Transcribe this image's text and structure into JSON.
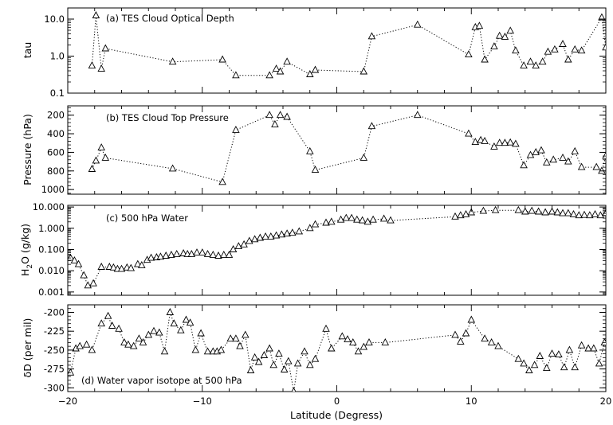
{
  "chart_data": [
    {
      "type": "scatter",
      "title": "(a) TES Cloud Optical Depth",
      "ylabel": "tau",
      "yscale": "log",
      "ylim": [
        0.1,
        20
      ],
      "xlim": [
        -20,
        20
      ],
      "line_style": "dotted",
      "marker": "open-triangle",
      "yticks": [
        {
          "v": 0.1,
          "label": "0.1"
        },
        {
          "v": 1,
          "label": "1.0"
        },
        {
          "v": 10,
          "label": "10.0"
        }
      ],
      "x": [
        -18.2,
        -17.9,
        -17.5,
        -17.2,
        -12.2,
        -8.5,
        -7.5,
        -5.0,
        -4.5,
        -4.2,
        -3.7,
        -2.0,
        -1.6,
        2.0,
        2.6,
        6.0,
        9.8,
        10.3,
        10.6,
        11.0,
        11.7,
        12.1,
        12.5,
        12.9,
        13.3,
        13.9,
        14.4,
        14.8,
        15.3,
        15.7,
        16.2,
        16.8,
        17.2,
        17.7,
        18.2,
        19.7,
        20.0
      ],
      "y": [
        0.55,
        12.5,
        0.45,
        1.6,
        0.7,
        0.8,
        0.3,
        0.3,
        0.45,
        0.38,
        0.7,
        0.32,
        0.42,
        0.38,
        3.4,
        7.0,
        1.1,
        6.0,
        6.5,
        0.8,
        1.8,
        3.5,
        3.3,
        4.8,
        1.4,
        0.55,
        0.7,
        0.55,
        0.7,
        1.3,
        1.5,
        2.1,
        0.8,
        1.5,
        1.4,
        11.0,
        1.7
      ]
    },
    {
      "type": "scatter",
      "title": "(b) TES Cloud Top Pressure",
      "ylabel": "Pressure (hPa)",
      "yscale": "linear",
      "yinvert": true,
      "ylim": [
        1050,
        100
      ],
      "xlim": [
        -20,
        20
      ],
      "line_style": "dotted",
      "marker": "open-triangle",
      "yticks": [
        {
          "v": 200,
          "label": "200"
        },
        {
          "v": 400,
          "label": "400"
        },
        {
          "v": 600,
          "label": "600"
        },
        {
          "v": 800,
          "label": "800"
        },
        {
          "v": 1000,
          "label": "1000"
        }
      ],
      "x": [
        -18.2,
        -17.9,
        -17.5,
        -17.2,
        -12.2,
        -8.5,
        -7.5,
        -5.0,
        -4.6,
        -4.2,
        -3.7,
        -2.0,
        -1.6,
        2.0,
        2.6,
        6.0,
        9.8,
        10.3,
        10.7,
        11.0,
        11.7,
        12.1,
        12.5,
        12.9,
        13.3,
        13.9,
        14.4,
        14.8,
        15.2,
        15.6,
        16.1,
        16.8,
        17.2,
        17.7,
        18.2,
        19.3,
        19.7,
        20.0
      ],
      "y": [
        780,
        690,
        550,
        660,
        775,
        920,
        360,
        200,
        300,
        200,
        220,
        590,
        790,
        660,
        320,
        200,
        400,
        490,
        470,
        480,
        540,
        500,
        500,
        495,
        510,
        740,
        630,
        600,
        580,
        710,
        680,
        660,
        700,
        590,
        760,
        760,
        800,
        640
      ]
    },
    {
      "type": "scatter",
      "title": "(c) 500 hPa Water",
      "ylabel": "H2O (g/kg)",
      "yscale": "log",
      "ylim": [
        0.0007,
        12
      ],
      "xlim": [
        -20,
        20
      ],
      "line_style": "dotted",
      "marker": "open-triangle",
      "yticks": [
        {
          "v": 0.001,
          "label": "0.001"
        },
        {
          "v": 0.01,
          "label": "0.010"
        },
        {
          "v": 0.1,
          "label": "0.100"
        },
        {
          "v": 1,
          "label": "1.000"
        },
        {
          "v": 10,
          "label": "10.000"
        }
      ],
      "x": [
        -19.8,
        -19.5,
        -19.2,
        -18.8,
        -18.5,
        -18.1,
        -17.5,
        -16.9,
        -16.6,
        -16.3,
        -16.0,
        -15.6,
        -15.3,
        -14.8,
        -14.5,
        -14.1,
        -13.8,
        -13.4,
        -13.1,
        -12.7,
        -12.3,
        -11.9,
        -11.4,
        -11.1,
        -10.8,
        -10.4,
        -10.0,
        -9.6,
        -9.2,
        -8.8,
        -8.4,
        -8.0,
        -7.7,
        -7.3,
        -6.9,
        -6.5,
        -6.1,
        -5.7,
        -5.3,
        -4.9,
        -4.5,
        -4.1,
        -3.7,
        -3.3,
        -2.8,
        -2.0,
        -1.6,
        -0.8,
        -0.4,
        0.3,
        0.7,
        1.1,
        1.5,
        1.9,
        2.3,
        2.7,
        3.5,
        4.0,
        8.8,
        9.2,
        9.6,
        10.0,
        10.9,
        11.8,
        13.5,
        14.0,
        14.5,
        15.0,
        15.5,
        16.0,
        16.4,
        16.8,
        17.2,
        17.6,
        18.0,
        18.4,
        18.8,
        19.2,
        19.6,
        20.0
      ],
      "y": [
        0.04,
        0.03,
        0.02,
        0.006,
        0.002,
        0.0025,
        0.015,
        0.015,
        0.014,
        0.012,
        0.012,
        0.014,
        0.013,
        0.02,
        0.018,
        0.032,
        0.04,
        0.042,
        0.045,
        0.05,
        0.055,
        0.06,
        0.065,
        0.06,
        0.06,
        0.07,
        0.07,
        0.06,
        0.055,
        0.05,
        0.055,
        0.055,
        0.1,
        0.14,
        0.17,
        0.25,
        0.3,
        0.35,
        0.4,
        0.4,
        0.45,
        0.5,
        0.55,
        0.6,
        0.7,
        1.0,
        1.5,
        1.8,
        2.0,
        2.5,
        3.0,
        3.0,
        2.5,
        2.3,
        2.0,
        2.5,
        2.8,
        2.3,
        3.5,
        4.0,
        4.5,
        5.5,
        6.5,
        7.0,
        7.0,
        6.0,
        6.5,
        6.0,
        5.5,
        6.0,
        5.5,
        5.0,
        5.0,
        4.5,
        4.0,
        4.2,
        4.0,
        4.5,
        4.0,
        5.0
      ]
    },
    {
      "type": "scatter",
      "title": "(d) Water vapor isotope at 500 hPa",
      "ylabel": "δD (per mil)",
      "yscale": "linear",
      "ylim": [
        -305,
        -190
      ],
      "xlim": [
        -20,
        20
      ],
      "xlabel": "Latitude (Degress)",
      "line_style": "dotted",
      "marker": "open-triangle",
      "yticks": [
        {
          "v": -200,
          "label": "-200"
        },
        {
          "v": -225,
          "label": "-225"
        },
        {
          "v": -250,
          "label": "-250"
        },
        {
          "v": -275,
          "label": "-275"
        },
        {
          "v": -300,
          "label": "-300"
        }
      ],
      "xticks": [
        {
          "v": -20,
          "label": "−20"
        },
        {
          "v": -10,
          "label": "−10"
        },
        {
          "v": 0,
          "label": "0"
        },
        {
          "v": 10,
          "label": "10"
        },
        {
          "v": 20,
          "label": "20"
        }
      ],
      "x": [
        -19.8,
        -19.4,
        -19.1,
        -18.6,
        -18.2,
        -17.5,
        -17.0,
        -16.7,
        -16.2,
        -15.8,
        -15.5,
        -15.1,
        -14.7,
        -14.4,
        -14.0,
        -13.6,
        -13.2,
        -12.8,
        -12.4,
        -12.1,
        -11.6,
        -11.2,
        -10.9,
        -10.5,
        -10.1,
        -9.6,
        -9.2,
        -8.9,
        -8.6,
        -7.9,
        -7.5,
        -7.2,
        -6.8,
        -6.4,
        -6.1,
        -5.8,
        -5.4,
        -5.0,
        -4.7,
        -4.3,
        -3.9,
        -3.6,
        -3.2,
        -2.9,
        -2.4,
        -2.0,
        -1.6,
        -0.8,
        -0.4,
        0.4,
        0.8,
        1.2,
        1.6,
        2.0,
        2.4,
        3.6,
        8.8,
        9.2,
        9.6,
        10.0,
        11.0,
        11.5,
        12.0,
        13.5,
        13.9,
        14.3,
        14.7,
        15.1,
        15.6,
        16.0,
        16.5,
        16.9,
        17.3,
        17.7,
        18.2,
        18.7,
        19.1,
        19.5,
        19.9
      ],
      "y": [
        -280,
        -248,
        -245,
        -243,
        -250,
        -215,
        -205,
        -218,
        -222,
        -240,
        -243,
        -245,
        -235,
        -240,
        -230,
        -225,
        -227,
        -252,
        -200,
        -215,
        -224,
        -210,
        -214,
        -250,
        -228,
        -252,
        -252,
        -252,
        -250,
        -235,
        -235,
        -245,
        -230,
        -277,
        -260,
        -266,
        -257,
        -248,
        -270,
        -255,
        -276,
        -265,
        -305,
        -268,
        -252,
        -270,
        -262,
        -222,
        -248,
        -232,
        -236,
        -240,
        -252,
        -246,
        -240,
        -240,
        -230,
        -239,
        -228,
        -210,
        -235,
        -240,
        -245,
        -262,
        -268,
        -277,
        -270,
        -258,
        -274,
        -255,
        -256,
        -273,
        -250,
        -273,
        -244,
        -248,
        -248,
        -268,
        -240
      ]
    }
  ]
}
